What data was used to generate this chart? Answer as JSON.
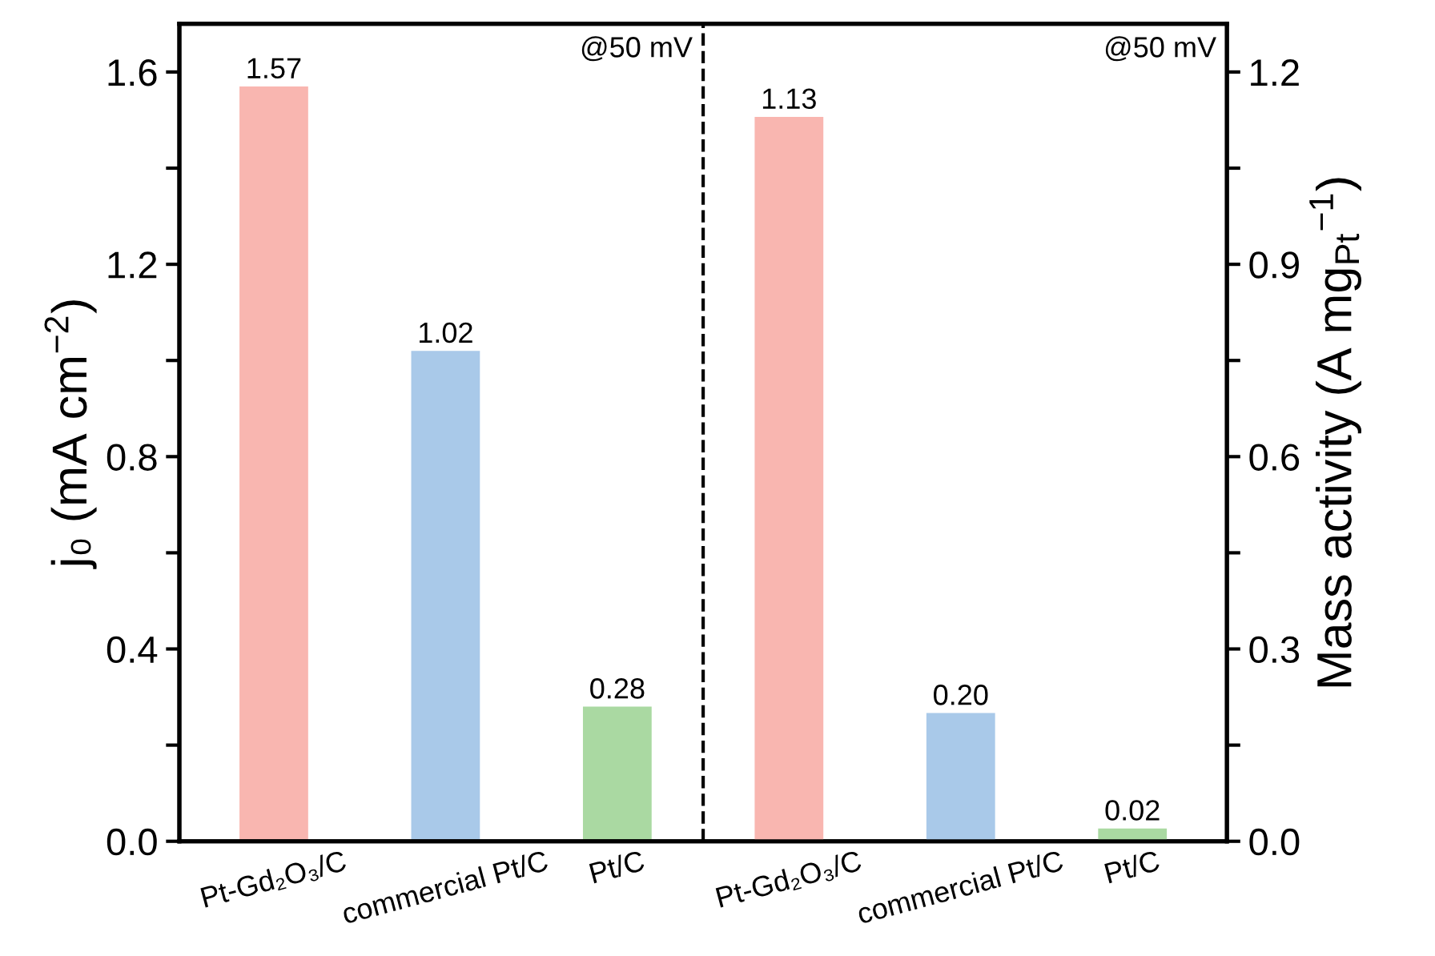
{
  "chart_data": {
    "type": "bar",
    "categories": [
      "Pt-Gd₂O₃/C",
      "commercial Pt/C",
      "Pt/C",
      "Pt-Gd₂O₃/C",
      "commercial Pt/C",
      "Pt/C"
    ],
    "series": [
      {
        "colors": [
          "#f9b6b0",
          "#a9c9e9",
          "#aad9a2",
          null,
          null,
          null
        ],
        "values": [
          1.57,
          1.02,
          0.28,
          null,
          null,
          null
        ],
        "value_labels": [
          "1.57",
          "1.02",
          "0.28",
          null,
          null,
          null
        ]
      },
      {
        "axis": "y2",
        "colors": [
          null,
          null,
          null,
          "#f9b6b0",
          "#a9c9e9",
          "#aad9a2"
        ],
        "values": [
          null,
          null,
          null,
          1.13,
          0.2,
          0.02
        ],
        "value_labels": [
          null,
          null,
          null,
          "1.13",
          "0.20",
          "0.02"
        ]
      }
    ],
    "ylabel": "j₀ (mA cm$^{−2}$)",
    "y2label": "Mass activity (A mg$_{Pt}$$^{−1}$)",
    "ylim": [
      0,
      1.7
    ],
    "yticks": [
      {
        "value": 0,
        "label": "0.0"
      },
      {
        "value": 0.2,
        "label": null
      },
      {
        "value": 0.4,
        "label": "0.4"
      },
      {
        "value": 0.6,
        "label": null
      },
      {
        "value": 0.8,
        "label": "0.8"
      },
      {
        "value": 1.0,
        "label": null
      },
      {
        "value": 1.2,
        "label": "1.2"
      },
      {
        "value": 1.4,
        "label": null
      },
      {
        "value": 1.6,
        "label": "1.6"
      }
    ],
    "y2lim": [
      0,
      1.275
    ],
    "y2ticks": [
      {
        "value": 0,
        "label": "0.0"
      },
      {
        "value": 0.15,
        "label": null
      },
      {
        "value": 0.3,
        "label": "0.3"
      },
      {
        "value": 0.45,
        "label": null
      },
      {
        "value": 0.6,
        "label": "0.6"
      },
      {
        "value": 0.75,
        "label": null
      },
      {
        "value": 0.9,
        "label": "0.9"
      },
      {
        "value": 1.05,
        "label": null
      },
      {
        "value": 1.2,
        "label": "1.2"
      }
    ],
    "annotations": [
      "@50 mV",
      "@50 mV"
    ],
    "grid": false,
    "legend": false
  }
}
